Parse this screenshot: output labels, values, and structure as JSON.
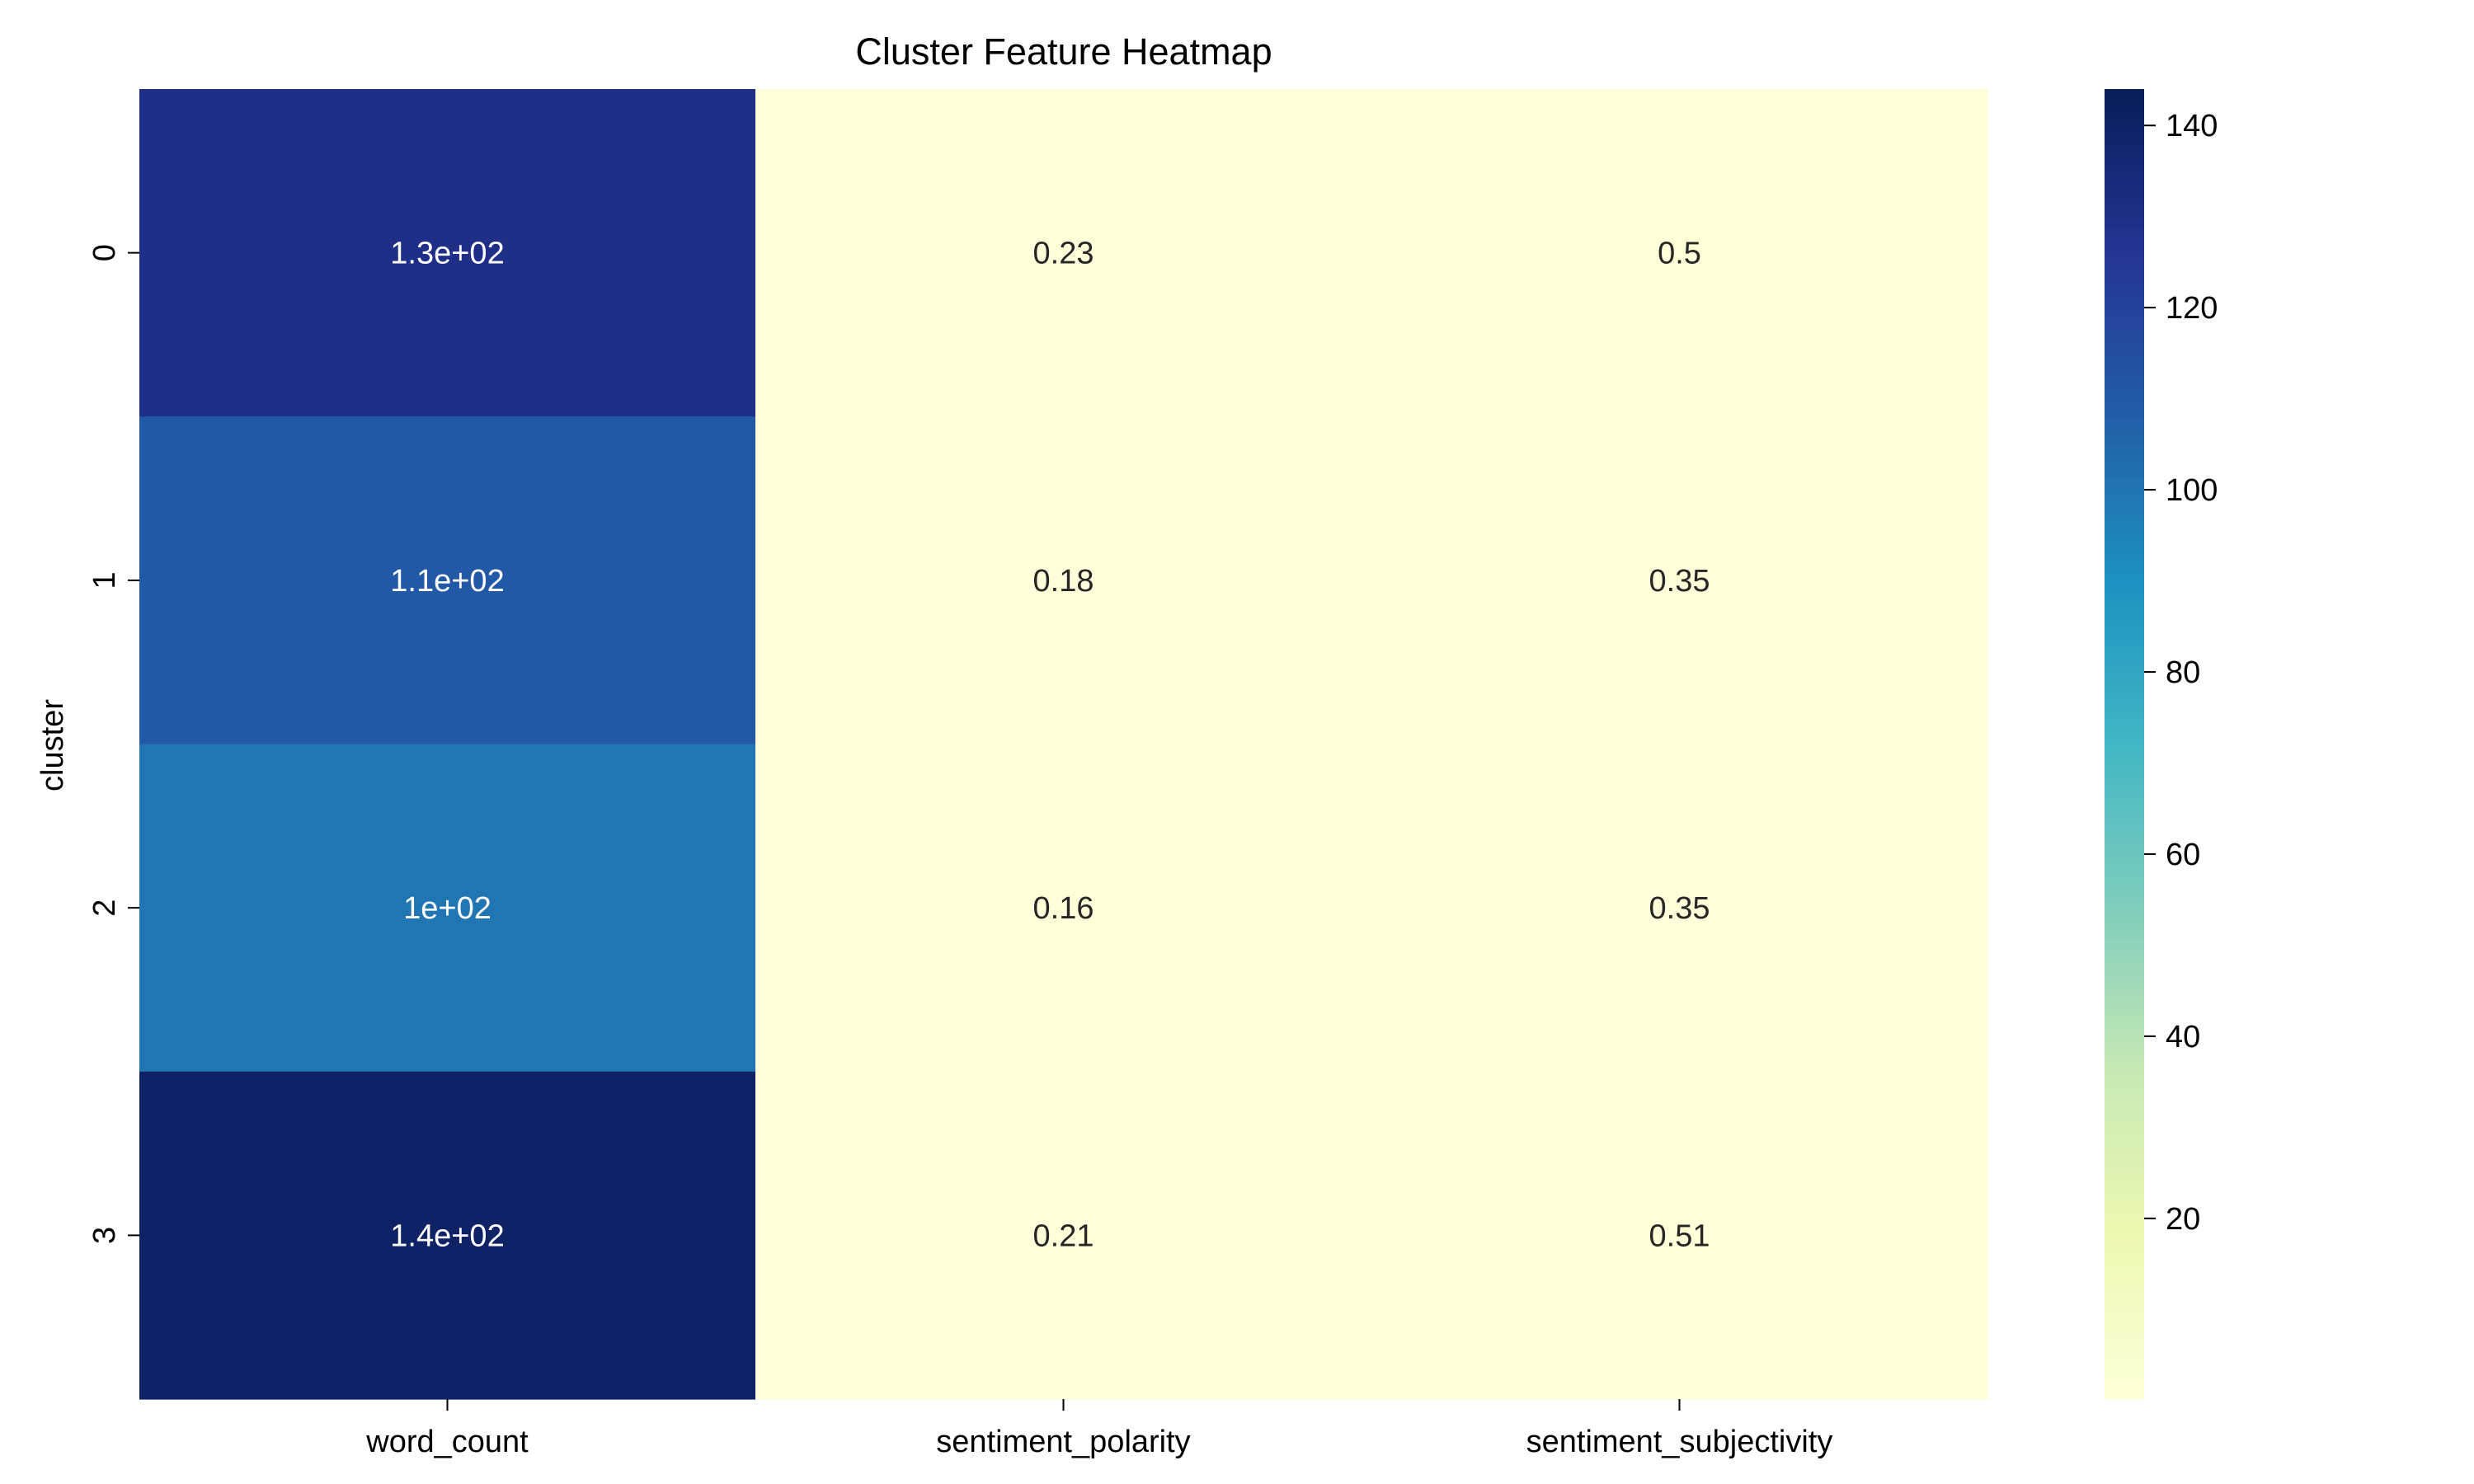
{
  "chart_data": {
    "type": "heatmap",
    "title": "Cluster Feature Heatmap",
    "xlabel": "",
    "ylabel": "cluster",
    "x_categories": [
      "word_count",
      "sentiment_polarity",
      "sentiment_subjectivity"
    ],
    "y_categories": [
      "0",
      "1",
      "2",
      "3"
    ],
    "values": [
      [
        130,
        0.23,
        0.5
      ],
      [
        110,
        0.18,
        0.35
      ],
      [
        100,
        0.16,
        0.35
      ],
      [
        140,
        0.21,
        0.51
      ]
    ],
    "annotations": [
      [
        "1.3e+02",
        "0.23",
        "0.5"
      ],
      [
        "1.1e+02",
        "0.18",
        "0.35"
      ],
      [
        "1e+02",
        "0.16",
        "0.35"
      ],
      [
        "1.4e+02",
        "0.21",
        "0.51"
      ]
    ],
    "colorscale": "YlGnBu",
    "color_range": [
      0.16,
      144
    ],
    "colorbar_ticks": [
      20,
      40,
      60,
      80,
      100,
      120,
      140
    ],
    "grid": false,
    "legend": "colorbar-right"
  }
}
